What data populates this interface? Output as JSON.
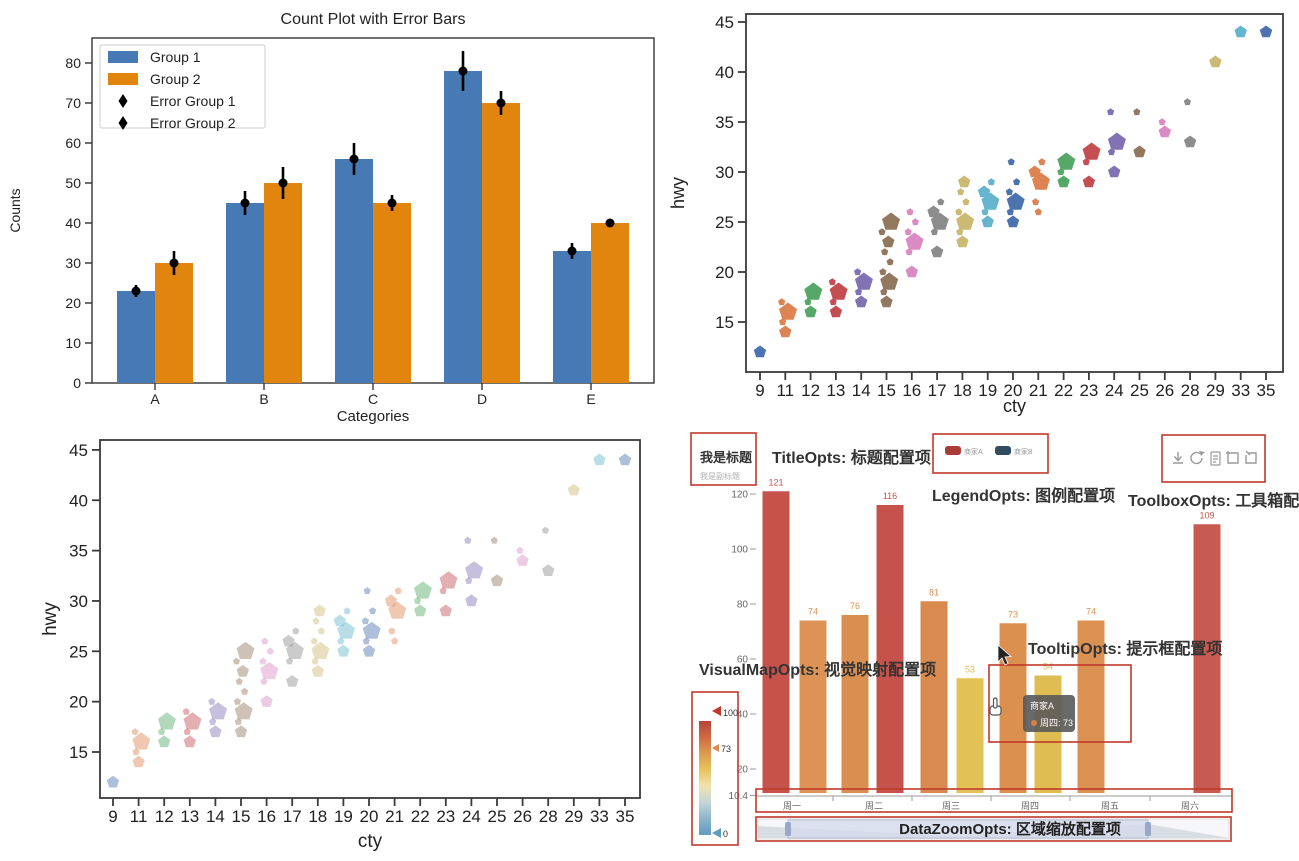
{
  "chart_data": [
    {
      "id": "count_plot",
      "type": "bar",
      "title": "Count Plot with Error Bars",
      "xlabel": "Categories",
      "ylabel": "Counts",
      "categories": [
        "A",
        "B",
        "C",
        "D",
        "E"
      ],
      "yticks": [
        0,
        10,
        20,
        30,
        40,
        50,
        60,
        70,
        80
      ],
      "ylim": [
        0,
        86
      ],
      "series": [
        {
          "name": "Group 1",
          "color": "#4779b4",
          "values": [
            23,
            45,
            56,
            78,
            33
          ],
          "errors": [
            1.5,
            3,
            4,
            5,
            2
          ]
        },
        {
          "name": "Group 2",
          "color": "#e2850f",
          "values": [
            30,
            50,
            45,
            70,
            40
          ],
          "errors": [
            3,
            4,
            2,
            3,
            0.5
          ]
        }
      ],
      "error_series_names": [
        "Error Group 1",
        "Error Group 2"
      ],
      "error_color": "#000000",
      "legend_entries": [
        "Group 1",
        "Group 2",
        "Error Group 1",
        "Error Group 2"
      ]
    },
    {
      "id": "scatter_deep",
      "type": "scatter",
      "xlabel": "cty",
      "ylabel": "hwy",
      "yticks": [
        15,
        20,
        25,
        30,
        35,
        40,
        45
      ],
      "marker": "pentagon",
      "alpha": 1,
      "palette": [
        "#4C72B0",
        "#DD8452",
        "#55A868",
        "#C44E52",
        "#8172B3",
        "#937860",
        "#DA8BC3",
        "#8C8C8C",
        "#CCB974",
        "#64B5CD"
      ],
      "groups": [
        {
          "cty": 9,
          "ci": 0,
          "pts": [
            [
              12,
              2
            ]
          ]
        },
        {
          "cty": 11,
          "ci": 1,
          "pts": [
            [
              14,
              2
            ],
            [
              15,
              1
            ],
            [
              16,
              3
            ],
            [
              17,
              1
            ]
          ]
        },
        {
          "cty": 12,
          "ci": 2,
          "pts": [
            [
              16,
              2
            ],
            [
              17,
              1
            ],
            [
              18,
              3
            ]
          ]
        },
        {
          "cty": 13,
          "ci": 3,
          "pts": [
            [
              16,
              2
            ],
            [
              17,
              1
            ],
            [
              18,
              3
            ],
            [
              19,
              1
            ]
          ]
        },
        {
          "cty": 14,
          "ci": 4,
          "pts": [
            [
              17,
              2
            ],
            [
              18,
              1
            ],
            [
              19,
              3
            ],
            [
              20,
              1
            ]
          ]
        },
        {
          "cty": 15,
          "ci": 5,
          "pts": [
            [
              17,
              2
            ],
            [
              18,
              1
            ],
            [
              19,
              3
            ],
            [
              20,
              1
            ],
            [
              21,
              1
            ],
            [
              22,
              1
            ],
            [
              23,
              2
            ],
            [
              24,
              1
            ],
            [
              25,
              3
            ]
          ]
        },
        {
          "cty": 16,
          "ci": 6,
          "pts": [
            [
              20,
              2
            ],
            [
              22,
              1
            ],
            [
              23,
              3
            ],
            [
              24,
              1
            ],
            [
              25,
              1
            ],
            [
              26,
              1
            ]
          ]
        },
        {
          "cty": 17,
          "ci": 7,
          "pts": [
            [
              22,
              2
            ],
            [
              24,
              1
            ],
            [
              25,
              3
            ],
            [
              26,
              2
            ],
            [
              27,
              1
            ]
          ]
        },
        {
          "cty": 18,
          "ci": 8,
          "pts": [
            [
              23,
              2
            ],
            [
              24,
              1
            ],
            [
              25,
              3
            ],
            [
              26,
              1
            ],
            [
              27,
              1
            ],
            [
              28,
              1
            ],
            [
              29,
              2
            ]
          ]
        },
        {
          "cty": 19,
          "ci": 9,
          "pts": [
            [
              25,
              2
            ],
            [
              26,
              1
            ],
            [
              27,
              3
            ],
            [
              28,
              2
            ],
            [
              29,
              1
            ]
          ]
        },
        {
          "cty": 20,
          "ci": 0,
          "pts": [
            [
              25,
              2
            ],
            [
              26,
              1
            ],
            [
              27,
              3
            ],
            [
              28,
              1
            ],
            [
              29,
              1
            ],
            [
              31,
              1
            ]
          ]
        },
        {
          "cty": 21,
          "ci": 1,
          "pts": [
            [
              26,
              1
            ],
            [
              27,
              1
            ],
            [
              29,
              3
            ],
            [
              30,
              2
            ],
            [
              31,
              1
            ]
          ]
        },
        {
          "cty": 22,
          "ci": 2,
          "pts": [
            [
              29,
              2
            ],
            [
              30,
              1
            ],
            [
              31,
              3
            ]
          ]
        },
        {
          "cty": 23,
          "ci": 3,
          "pts": [
            [
              29,
              2
            ],
            [
              31,
              1
            ],
            [
              32,
              3
            ]
          ]
        },
        {
          "cty": 24,
          "ci": 4,
          "pts": [
            [
              30,
              2
            ],
            [
              32,
              1
            ],
            [
              33,
              3
            ],
            [
              36,
              1
            ]
          ]
        },
        {
          "cty": 25,
          "ci": 5,
          "pts": [
            [
              32,
              2
            ],
            [
              36,
              1
            ]
          ]
        },
        {
          "cty": 26,
          "ci": 6,
          "pts": [
            [
              34,
              2
            ],
            [
              35,
              1
            ]
          ]
        },
        {
          "cty": 28,
          "ci": 7,
          "pts": [
            [
              33,
              2
            ],
            [
              37,
              1
            ]
          ]
        },
        {
          "cty": 29,
          "ci": 8,
          "pts": [
            [
              41,
              2
            ]
          ]
        },
        {
          "cty": 33,
          "ci": 9,
          "pts": [
            [
              44,
              2
            ]
          ]
        },
        {
          "cty": 35,
          "ci": 0,
          "pts": [
            [
              44,
              2
            ]
          ]
        }
      ]
    },
    {
      "id": "scatter_pastel",
      "type": "scatter",
      "xlabel": "cty",
      "ylabel": "hwy",
      "yticks": [
        15,
        20,
        25,
        30,
        35,
        40,
        45
      ],
      "marker": "pentagon",
      "alpha": 0.45,
      "same_data_as": "scatter_deep"
    },
    {
      "id": "echarts_annotated",
      "type": "bar",
      "title": "我是标题",
      "subtitle": "我是副标题",
      "annotation_color": "#c0392b",
      "annotations": {
        "title": "TitleOpts: 标题配置项",
        "legend": "LegendOpts: 图例配置项",
        "toolbox": "ToolboxOpts: 工具箱配置项",
        "tooltip": "TooltipOpts: 提示框配置项",
        "visualmap": "VisualMapOpts: 视觉映射配置项",
        "datazoom": "DataZoomOpts: 区域缩放配置项"
      },
      "legend": [
        {
          "name": "商家A",
          "color": "#a93d35"
        },
        {
          "name": "商家B",
          "color": "#324b5e"
        }
      ],
      "toolbox_icons": [
        "download-icon",
        "refresh-icon",
        "data-view-icon",
        "data-zoom-icon",
        "restore-icon"
      ],
      "yticks": [
        "120",
        "100",
        "80",
        "60",
        "40",
        "20",
        "10.4"
      ],
      "ytick_values": [
        120,
        100,
        80,
        60,
        40,
        20,
        10.4
      ],
      "days": [
        "周一",
        "周二",
        "周三",
        "周四",
        "周五",
        "周六"
      ],
      "bars": [
        {
          "day": 0,
          "value": 121,
          "color": "#c5524b"
        },
        {
          "day": 0,
          "value": 74,
          "color": "#dc9355"
        },
        {
          "day": 1,
          "value": 76,
          "color": "#da8f52"
        },
        {
          "day": 1,
          "value": 116,
          "color": "#c5524b"
        },
        {
          "day": 2,
          "value": 81,
          "color": "#d98a4e"
        },
        {
          "day": 2,
          "value": 53,
          "color": "#e2c156"
        },
        {
          "day": 3,
          "value": 73,
          "color": "#dc9050"
        },
        {
          "day": 3,
          "value": 54,
          "color": "#e0bd52"
        },
        {
          "day": 4,
          "value": 74,
          "color": "#db9151"
        },
        {
          "day": 5,
          "value": 109,
          "color": "#c75b51"
        }
      ],
      "tooltip": {
        "title": "商家A",
        "line": "周四: 73",
        "dot_color": "#d48248"
      },
      "visualmap": {
        "max": "100",
        "mid": "73",
        "min": "0",
        "gradient": [
          "#b5453c",
          "#cf6a42",
          "#dd9b50",
          "#e7c35c",
          "#efe3ae",
          "#c2d6d8",
          "#8db4cb",
          "#5f9dc1"
        ]
      }
    }
  ]
}
